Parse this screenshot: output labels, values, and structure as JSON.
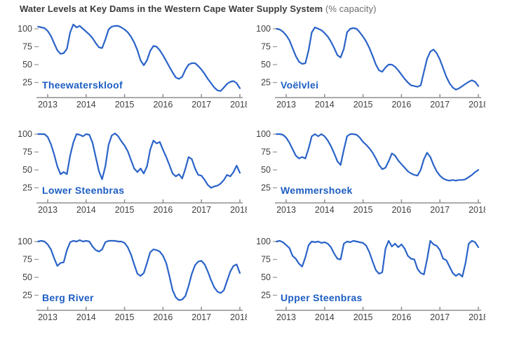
{
  "title": {
    "main": "Water Levels at Key Dams in the Western Cape Water Supply System",
    "suffix": " (% capacity)"
  },
  "colors": {
    "line": "#2a63c8",
    "dam_label": "#1c5dc2",
    "axis": "#8f8f8f",
    "tick_dash": "#9c9c9c",
    "tick_text": "#414141",
    "title_text": "#3b3b3b",
    "title_suffix": "#6e6e6e"
  },
  "chart_data": {
    "type": "line",
    "title": "Water Levels at Key Dams in the Western Cape Water Supply System",
    "unit": "% capacity",
    "layout": {
      "rows": 3,
      "cols": 2,
      "grid": false,
      "legend": "none"
    },
    "x_ticks": [
      2013,
      2014,
      2015,
      2016,
      2017,
      2018
    ],
    "y_ticks": [
      100,
      75,
      50,
      25
    ],
    "x_range": [
      2012.75,
      2018.05
    ],
    "y_range_drawn": [
      5,
      108
    ],
    "x_start": 2012.75,
    "x_step": 0.08333,
    "panels": [
      {
        "name": "Theewaterskloof",
        "values": [
          103,
          102,
          101,
          97,
          90,
          80,
          70,
          65,
          66,
          72,
          95,
          106,
          102,
          104,
          100,
          96,
          92,
          87,
          80,
          74,
          73,
          85,
          99,
          103,
          104,
          104,
          102,
          99,
          95,
          89,
          81,
          70,
          56,
          49,
          56,
          69,
          76,
          75,
          70,
          63,
          55,
          47,
          39,
          32,
          30,
          33,
          43,
          50,
          52,
          52,
          48,
          43,
          37,
          30,
          24,
          18,
          14,
          13,
          18,
          23,
          26,
          27,
          24,
          17
        ]
      },
      {
        "name": "Voëlvlei",
        "values": [
          100,
          99,
          96,
          91,
          84,
          73,
          62,
          54,
          51,
          52,
          70,
          95,
          102,
          100,
          98,
          94,
          89,
          82,
          73,
          63,
          60,
          72,
          95,
          100,
          101,
          100,
          95,
          89,
          82,
          73,
          62,
          50,
          42,
          40,
          46,
          50,
          50,
          47,
          42,
          36,
          30,
          25,
          21,
          20,
          19,
          21,
          40,
          58,
          68,
          71,
          66,
          57,
          45,
          33,
          24,
          18,
          15,
          17,
          20,
          23,
          26,
          28,
          26,
          20
        ]
      },
      {
        "name": "Lower Steenbras",
        "values": [
          100,
          100,
          100,
          96,
          86,
          72,
          55,
          44,
          47,
          44,
          70,
          88,
          100,
          99,
          97,
          100,
          99,
          88,
          68,
          48,
          37,
          55,
          85,
          98,
          101,
          97,
          90,
          84,
          76,
          64,
          52,
          47,
          52,
          45,
          55,
          78,
          91,
          87,
          89,
          78,
          68,
          57,
          45,
          41,
          44,
          38,
          52,
          68,
          65,
          52,
          43,
          42,
          36,
          29,
          25,
          27,
          28,
          31,
          36,
          43,
          41,
          47,
          56,
          46
        ]
      },
      {
        "name": "Wemmershoek",
        "values": [
          100,
          100,
          99,
          95,
          88,
          79,
          70,
          66,
          68,
          66,
          80,
          97,
          100,
          97,
          100,
          97,
          91,
          83,
          73,
          62,
          57,
          78,
          97,
          100,
          100,
          99,
          95,
          89,
          85,
          80,
          74,
          66,
          57,
          51,
          53,
          62,
          73,
          70,
          63,
          58,
          53,
          48,
          45,
          43,
          42,
          50,
          65,
          74,
          68,
          57,
          48,
          42,
          38,
          36,
          35,
          36,
          35,
          36,
          36,
          37,
          40,
          43,
          47,
          50
        ]
      },
      {
        "name": "Berg River",
        "values": [
          100,
          101,
          100,
          96,
          89,
          77,
          66,
          70,
          71,
          88,
          99,
          101,
          100,
          102,
          100,
          101,
          100,
          93,
          88,
          86,
          89,
          99,
          101,
          101,
          101,
          100,
          100,
          98,
          92,
          82,
          68,
          55,
          52,
          56,
          70,
          85,
          89,
          88,
          86,
          80,
          70,
          52,
          32,
          22,
          18,
          19,
          24,
          38,
          55,
          67,
          72,
          73,
          68,
          58,
          46,
          36,
          30,
          28,
          32,
          45,
          58,
          66,
          68,
          56
        ]
      },
      {
        "name": "Upper Steenbras",
        "values": [
          100,
          101,
          99,
          95,
          91,
          80,
          76,
          69,
          65,
          78,
          95,
          100,
          99,
          100,
          98,
          99,
          97,
          92,
          83,
          76,
          75,
          97,
          100,
          99,
          101,
          100,
          99,
          98,
          94,
          85,
          72,
          60,
          55,
          57,
          90,
          101,
          93,
          97,
          92,
          96,
          90,
          80,
          76,
          75,
          62,
          56,
          54,
          75,
          101,
          96,
          94,
          88,
          76,
          74,
          65,
          56,
          52,
          55,
          51,
          70,
          97,
          101,
          99,
          92
        ]
      }
    ]
  }
}
